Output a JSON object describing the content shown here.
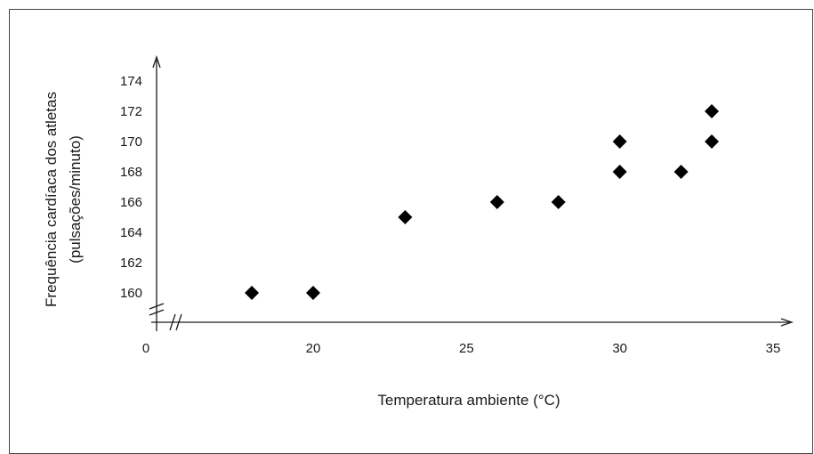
{
  "chart_data": {
    "type": "scatter",
    "xlabel": "Temperatura ambiente (°C)",
    "ylabel_line1": "Frequência cardíaca dos atletas",
    "ylabel_line2": "(pulsações/minuto)",
    "x_ticks": [
      0,
      20,
      25,
      30,
      35
    ],
    "y_ticks": [
      160,
      162,
      164,
      166,
      168,
      170,
      172,
      174
    ],
    "x_axis_break": true,
    "y_axis_break": true,
    "xlim": [
      16,
      35
    ],
    "ylim": [
      158.3,
      175
    ],
    "grid": false,
    "marker": "diamond",
    "marker_color": "#000000",
    "points": [
      {
        "x": 18,
        "y": 160
      },
      {
        "x": 20,
        "y": 160
      },
      {
        "x": 23,
        "y": 165
      },
      {
        "x": 26,
        "y": 166
      },
      {
        "x": 28,
        "y": 166
      },
      {
        "x": 30,
        "y": 168
      },
      {
        "x": 30,
        "y": 170
      },
      {
        "x": 32,
        "y": 168
      },
      {
        "x": 33,
        "y": 170
      },
      {
        "x": 33,
        "y": 172
      }
    ]
  }
}
